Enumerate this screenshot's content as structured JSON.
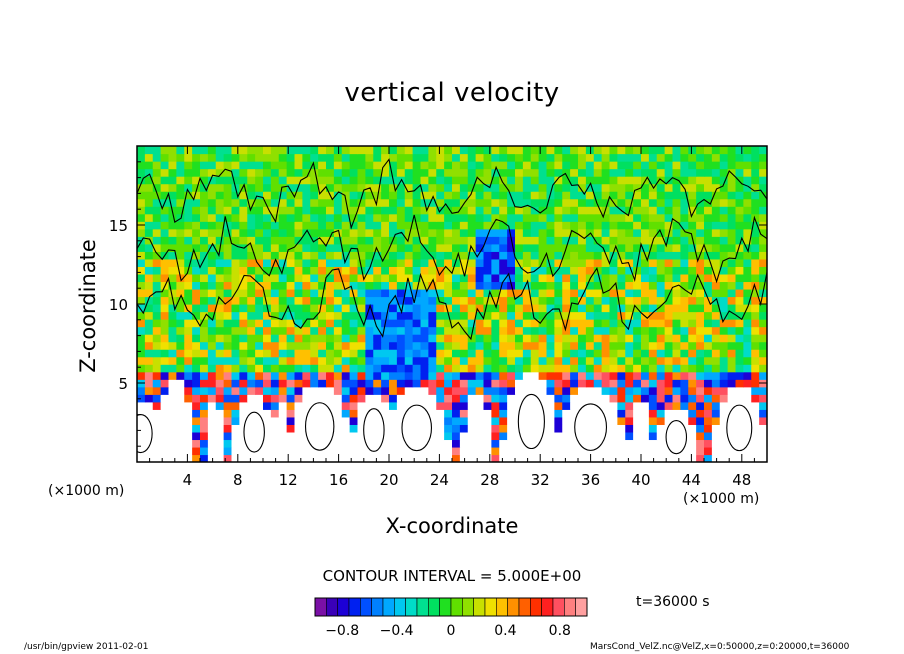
{
  "chart_data": {
    "type": "heatmap",
    "title": "vertical velocity",
    "xlabel": "X-coordinate",
    "ylabel": "Z-coordinate",
    "x_unit_label": "(×1000 m)",
    "x_ticks": [
      "4",
      "8",
      "12",
      "16",
      "20",
      "24",
      "28",
      "32",
      "36",
      "40",
      "44",
      "48"
    ],
    "x_tick_values": [
      4,
      8,
      12,
      16,
      20,
      24,
      28,
      32,
      36,
      40,
      44,
      48
    ],
    "y_ticks": [
      "5",
      "10",
      "15"
    ],
    "y_tick_values": [
      5,
      10,
      15
    ],
    "xlim": [
      0,
      50
    ],
    "ylim": [
      0,
      20
    ],
    "contour_interval_label": "CONTOUR INTERVAL = 5.000E+00",
    "time_label": "t=36000 s",
    "colorbar": {
      "ticks": [
        "−0.8",
        "−0.4",
        "0",
        "0.4",
        "0.8"
      ],
      "tick_values": [
        -0.8,
        -0.4,
        0,
        0.4,
        0.8
      ],
      "range": [
        -1.0,
        1.0
      ],
      "colors": [
        "#7a10a6",
        "#3a00b8",
        "#1c00d6",
        "#0020f0",
        "#0050ff",
        "#0080ff",
        "#00a8ff",
        "#00c8f0",
        "#00dcc8",
        "#00e090",
        "#00e060",
        "#20e020",
        "#60e000",
        "#90e000",
        "#c8e000",
        "#f0e000",
        "#ffc000",
        "#ff9000",
        "#ff6000",
        "#ff3000",
        "#ff2020",
        "#ff5060",
        "#ff8080",
        "#ffa0a0"
      ]
    },
    "field_colors": {
      "background_green": "#28e628",
      "white_regions": "#ffffff",
      "contour_line": "#000000"
    }
  },
  "footer": {
    "left": "/usr/bin/gpview   2011-02-01",
    "right": "MarsCond_VelZ.nc@VelZ,x=0:50000,z=0:20000,t=36000"
  }
}
